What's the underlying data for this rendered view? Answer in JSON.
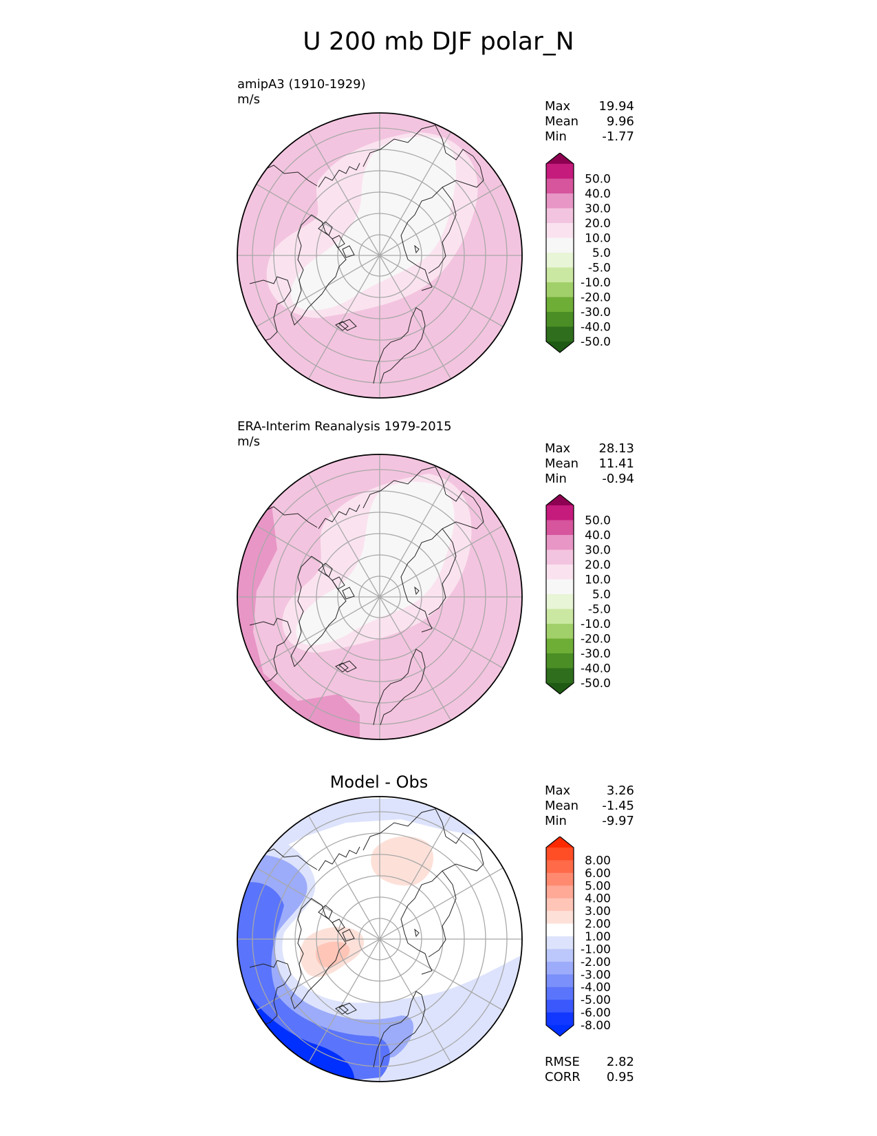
{
  "title": "U 200 mb DJF polar_N",
  "panels": [
    {
      "label_line1": "amipA3 (1910-1929)",
      "label_line2": "m/s",
      "stats": [
        {
          "name": "Max",
          "value": "19.94"
        },
        {
          "name": "Mean",
          "value": "9.96"
        },
        {
          "name": "Min",
          "value": "-1.77"
        }
      ]
    },
    {
      "label_line1": "ERA-Interim Reanalysis 1979-2015",
      "label_line2": "m/s",
      "stats": [
        {
          "name": "Max",
          "value": "28.13"
        },
        {
          "name": "Mean",
          "value": "11.41"
        },
        {
          "name": "Min",
          "value": "-0.94"
        }
      ]
    },
    {
      "title": "Model - Obs",
      "stats": [
        {
          "name": "Max",
          "value": "3.26"
        },
        {
          "name": "Mean",
          "value": "-1.45"
        },
        {
          "name": "Min",
          "value": "-9.97"
        }
      ],
      "metrics": [
        {
          "name": "RMSE",
          "value": "2.82"
        },
        {
          "name": "CORR",
          "value": "0.95"
        }
      ]
    }
  ],
  "colorbars": {
    "field": {
      "labels": [
        "50.0",
        "40.0",
        "30.0",
        "20.0",
        "10.0",
        "5.0",
        "-5.0",
        "-10.0",
        "-20.0",
        "-30.0",
        "-40.0",
        "-50.0"
      ],
      "colors": [
        "#8e0152",
        "#c51b7d",
        "#de77ae",
        "#f1b6da",
        "#fde0ef",
        "#f7f7f7",
        "#e6f5d0",
        "#b8e186",
        "#7fbc41",
        "#4d9221",
        "#276419",
        "#1f5a14"
      ],
      "segment_colors": [
        "#8e0152",
        "#c51b7d",
        "#d6559d",
        "#e896c6",
        "#f3c4df",
        "#fae3ef",
        "#f7f7f7",
        "#e8f5d6",
        "#cbe8a2",
        "#a1d06a",
        "#6ead36",
        "#4a8e25",
        "#2e6e1c",
        "#1f5a14"
      ]
    },
    "diff": {
      "labels": [
        "8.00",
        "6.00",
        "5.00",
        "4.00",
        "3.00",
        "2.00",
        "1.00",
        "-1.00",
        "-2.00",
        "-3.00",
        "-4.00",
        "-5.00",
        "-6.00",
        "-8.00"
      ],
      "segment_colors": [
        "#ff2a00",
        "#ff4d26",
        "#ff6a48",
        "#ff8a70",
        "#ffa996",
        "#ffc6b8",
        "#fde1d9",
        "#ffffff",
        "#dde3fc",
        "#bcc8fb",
        "#9cacfa",
        "#7b90fa",
        "#5a74fb",
        "#3a58fc",
        "#1237ff",
        "#0030ff"
      ]
    }
  },
  "map_colors": {
    "field_base": "#f3c4df",
    "field_light": "#fae3ef",
    "field_white": "#f7f7f7",
    "field_dark": "#e896c6",
    "diff_white": "#ffffff",
    "diff_blue1": "#dde3fc",
    "diff_blue2": "#9cacfa",
    "diff_blue3": "#5a74fb",
    "diff_blue4": "#0030ff",
    "diff_red1": "#fde1d9",
    "diff_red2": "#ffc6b8"
  }
}
